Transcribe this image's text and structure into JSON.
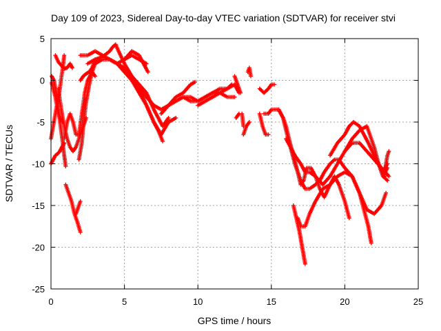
{
  "chart_data": {
    "type": "scatter",
    "title": "Day 109 of 2023, Sidereal Day-to-day VTEC variation (SDTVAR) for receiver stvi",
    "xlabel": "GPS time / hours",
    "ylabel": "SDTVAR / TECUs",
    "xlim": [
      0,
      25
    ],
    "ylim": [
      -25,
      5
    ],
    "xticks": [
      0,
      5,
      10,
      15,
      20,
      25
    ],
    "yticks": [
      -25,
      -20,
      -15,
      -10,
      -5,
      0,
      5
    ],
    "grid": true,
    "marker": "plus",
    "color": "#ff0000",
    "series": [
      {
        "x": [
          0.0,
          0.15,
          0.3,
          0.45,
          0.6,
          0.75,
          0.9
        ],
        "y": [
          -10.0,
          -9.5,
          -9.0,
          -8.8,
          -8.5,
          -8.0,
          -7.5
        ]
      },
      {
        "x": [
          0.0,
          0.2,
          0.4,
          0.6,
          0.8,
          0.9
        ],
        "y": [
          -7.0,
          -5.0,
          -3.0,
          -1.0,
          1.5,
          3.0
        ]
      },
      {
        "x": [
          0.05,
          0.2,
          0.35,
          0.5,
          0.65,
          0.8,
          0.9,
          1.0
        ],
        "y": [
          0.5,
          0.0,
          -1.5,
          -3.5,
          -5.5,
          -7.5,
          -9.0,
          -10.3
        ]
      },
      {
        "x": [
          0.3,
          0.5,
          0.7,
          0.9,
          1.1,
          1.3,
          1.45
        ],
        "y": [
          3.0,
          2.2,
          1.8,
          1.4,
          1.5,
          2.0,
          1.5
        ]
      },
      {
        "x": [
          0.05,
          0.15,
          0.3,
          0.45,
          0.6,
          0.8
        ],
        "y": [
          -0.3,
          -1.0,
          -2.0,
          -3.5,
          -4.5,
          -5.0
        ]
      },
      {
        "x": [
          0.5,
          0.7,
          0.9,
          1.1,
          1.3,
          1.5,
          1.7,
          2.0,
          2.2,
          2.4
        ],
        "y": [
          -1.0,
          -3.5,
          -5.5,
          -7.0,
          -8.0,
          -8.5,
          -8.0,
          -6.5,
          -5.5,
          -4.5
        ]
      },
      {
        "x": [
          0.9,
          1.1,
          1.3,
          1.5,
          1.7,
          1.9,
          2.1,
          2.3,
          2.5,
          2.8,
          3.0
        ],
        "y": [
          -7.0,
          -5.0,
          -4.0,
          -5.0,
          -6.5,
          -6.5,
          -4.0,
          -1.5,
          0.0,
          1.0,
          0.5
        ]
      },
      {
        "x": [
          1.0,
          1.2,
          1.4,
          1.6,
          1.8,
          2.0
        ],
        "y": [
          -12.5,
          -13.5,
          -14.5,
          -16.0,
          -17.0,
          -18.2
        ]
      },
      {
        "x": [
          1.7,
          1.8,
          1.9,
          2.0
        ],
        "y": [
          -16.0,
          -15.5,
          -15.0,
          -14.5
        ]
      },
      {
        "x": [
          1.9,
          2.1,
          2.2,
          2.4,
          2.6,
          2.8,
          3.0,
          3.2,
          3.4
        ],
        "y": [
          -9.5,
          -7.5,
          -5.5,
          -2.5,
          -0.5,
          1.0,
          2.0,
          2.5,
          2.8
        ]
      },
      {
        "x": [
          2.0,
          2.2,
          2.4,
          2.6,
          2.8,
          3.0
        ],
        "y": [
          0.0,
          0.5,
          0.8,
          1.0,
          1.5,
          2.5
        ]
      },
      {
        "x": [
          2.0,
          2.5,
          3.0,
          3.5,
          4.0,
          4.5,
          5.0,
          5.5,
          6.0,
          6.5
        ],
        "y": [
          3.0,
          3.0,
          3.5,
          3.0,
          2.5,
          2.0,
          2.5,
          3.0,
          2.5,
          2.0
        ]
      },
      {
        "x": [
          2.5,
          3.0,
          3.5,
          4.0,
          4.2,
          4.4,
          4.6,
          5.0,
          5.5,
          6.0,
          6.5,
          7.0,
          7.3,
          7.6,
          8.0
        ],
        "y": [
          2.0,
          2.5,
          2.8,
          3.5,
          4.0,
          4.3,
          3.5,
          2.0,
          0.5,
          -0.5,
          -1.5,
          -3.5,
          -4.5,
          -5.5,
          -4.5
        ]
      },
      {
        "x": [
          3.0,
          3.5,
          4.0,
          4.5,
          5.0,
          5.5,
          6.0,
          6.5,
          7.0,
          7.5,
          8.0,
          8.5
        ],
        "y": [
          2.0,
          2.5,
          2.5,
          2.0,
          1.0,
          0.0,
          -1.5,
          -3.0,
          -5.0,
          -6.5,
          -5.0,
          -4.5
        ]
      },
      {
        "x": [
          4.0,
          4.5,
          5.0,
          5.5,
          6.0,
          6.5,
          7.0,
          7.3,
          7.6
        ],
        "y": [
          2.5,
          2.0,
          1.5,
          0.5,
          -1.0,
          -3.0,
          -5.0,
          -6.0,
          -7.3
        ]
      },
      {
        "x": [
          5.0,
          5.5,
          6.0,
          6.3,
          6.6
        ],
        "y": [
          2.5,
          3.5,
          3.0,
          2.0,
          1.0
        ]
      },
      {
        "x": [
          6.0,
          6.5,
          7.0,
          7.5,
          8.0,
          8.5,
          9.0,
          9.5,
          9.8
        ],
        "y": [
          -1.0,
          -2.0,
          -3.0,
          -3.5,
          -3.0,
          -2.0,
          -1.5,
          -0.5,
          -0.2
        ]
      },
      {
        "x": [
          7.5,
          8.0,
          8.5,
          9.0,
          9.5,
          10.0,
          10.5,
          11.0,
          11.5,
          12.0,
          12.5
        ],
        "y": [
          -4.0,
          -3.0,
          -2.5,
          -2.0,
          -2.0,
          -2.5,
          -2.0,
          -1.5,
          -1.5,
          -2.0,
          -2.0
        ]
      },
      {
        "x": [
          9.0,
          9.5,
          10.0,
          10.5,
          11.0,
          11.5,
          12.0,
          12.3
        ],
        "y": [
          -2.0,
          -2.5,
          -2.5,
          -2.0,
          -1.5,
          -1.0,
          -1.0,
          -0.5
        ]
      },
      {
        "x": [
          10.0,
          10.5,
          11.0,
          11.5,
          12.0,
          12.5,
          12.8
        ],
        "y": [
          -3.0,
          -2.5,
          -2.0,
          -1.5,
          -1.0,
          -0.5,
          -1.5
        ]
      },
      {
        "x": [
          12.5,
          12.7,
          12.9
        ],
        "y": [
          0.5,
          -0.5,
          -1.5
        ]
      },
      {
        "x": [
          12.6,
          12.8
        ],
        "y": [
          -4.5,
          -4.0
        ]
      },
      {
        "x": [
          13.0,
          13.1
        ],
        "y": [
          -4.0,
          -5.5
        ]
      },
      {
        "x": [
          13.1,
          13.3,
          13.5
        ],
        "y": [
          -6.5,
          -5.5,
          -5.0
        ]
      },
      {
        "x": [
          13.4,
          13.5,
          13.6
        ],
        "y": [
          1.0,
          1.5,
          0.5
        ]
      },
      {
        "x": [
          14.2,
          14.5,
          14.8,
          15.0,
          15.2
        ],
        "y": [
          -1.0,
          -1.5,
          -1.0,
          -0.5,
          -0.5
        ]
      },
      {
        "x": [
          14.2,
          14.4,
          14.6,
          14.8
        ],
        "y": [
          -4.0,
          -5.5,
          -6.5,
          -6.5
        ]
      },
      {
        "x": [
          14.5,
          14.8,
          15.0,
          15.2,
          15.5,
          15.8,
          16.0,
          16.2,
          16.5,
          16.8,
          17.0,
          17.2,
          17.4,
          17.7,
          18.0,
          18.3,
          18.6,
          19.0,
          19.3,
          19.6,
          20.0,
          20.3
        ],
        "y": [
          -4.0,
          -4.0,
          -3.5,
          -3.5,
          -3.5,
          -4.5,
          -5.5,
          -7.0,
          -9.0,
          -11.0,
          -12.5,
          -12.0,
          -10.5,
          -10.5,
          -11.5,
          -13.0,
          -14.0,
          -12.5,
          -11.5,
          -12.5,
          -14.5,
          -16.5
        ]
      },
      {
        "x": [
          15.5,
          15.8,
          16.0,
          16.3,
          16.6,
          17.0,
          17.3,
          17.6,
          18.0,
          18.3,
          18.6,
          19.0,
          19.3,
          19.6,
          20.0,
          20.5,
          21.0,
          21.3,
          21.6,
          21.8
        ],
        "y": [
          -3.5,
          -4.5,
          -6.0,
          -8.0,
          -10.0,
          -12.0,
          -13.0,
          -13.0,
          -12.5,
          -12.0,
          -11.0,
          -10.0,
          -9.5,
          -9.5,
          -10.5,
          -11.5,
          -13.5,
          -15.5,
          -17.5,
          -19.5
        ]
      },
      {
        "x": [
          16.0,
          16.3,
          16.6,
          17.0,
          17.3,
          17.6,
          18.0,
          18.5,
          19.0,
          19.5,
          20.0,
          20.5,
          21.0,
          21.5,
          22.0,
          22.5,
          23.0
        ],
        "y": [
          -7.0,
          -8.0,
          -9.0,
          -10.0,
          -11.0,
          -11.0,
          -11.5,
          -12.5,
          -11.5,
          -10.0,
          -8.5,
          -7.5,
          -7.5,
          -8.5,
          -9.5,
          -10.5,
          -11.5
        ]
      },
      {
        "x": [
          16.5,
          16.7,
          16.9,
          17.1,
          17.3
        ],
        "y": [
          -15.0,
          -16.5,
          -18.0,
          -20.0,
          -22.0
        ]
      },
      {
        "x": [
          16.8,
          17.0,
          17.3,
          17.6,
          18.0,
          18.5,
          19.0,
          19.5,
          20.0,
          20.5,
          21.0,
          21.5,
          22.0,
          22.5,
          22.8
        ],
        "y": [
          -16.5,
          -17.5,
          -17.5,
          -16.0,
          -14.5,
          -13.0,
          -12.5,
          -11.5,
          -11.0,
          -11.5,
          -13.5,
          -15.5,
          -16.0,
          -15.0,
          -13.5
        ]
      },
      {
        "x": [
          19.0,
          19.5,
          20.0,
          20.3,
          20.6,
          21.0,
          21.3,
          21.6,
          22.0,
          22.3,
          22.6,
          22.9
        ],
        "y": [
          -9.0,
          -7.5,
          -6.5,
          -5.5,
          -5.0,
          -5.5,
          -6.5,
          -7.5,
          -9.0,
          -10.0,
          -11.0,
          -10.0
        ]
      },
      {
        "x": [
          20.0,
          20.5,
          21.0,
          21.5,
          22.0,
          22.3,
          22.6,
          22.9
        ],
        "y": [
          -8.5,
          -7.0,
          -6.0,
          -5.5,
          -8.0,
          -10.0,
          -11.5,
          -12.0
        ]
      },
      {
        "x": [
          22.0,
          22.3,
          22.6,
          22.9
        ],
        "y": [
          -9.0,
          -10.0,
          -11.5,
          -10.5
        ]
      },
      {
        "x": [
          22.7,
          22.8,
          22.9,
          23.0
        ],
        "y": [
          -11.5,
          -10.0,
          -9.0,
          -8.5
        ]
      }
    ]
  }
}
